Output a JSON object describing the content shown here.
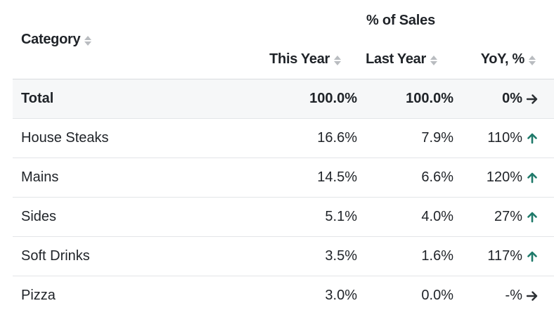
{
  "header": {
    "group_title": "% of Sales",
    "columns": {
      "category": "Category",
      "this_year": "This Year",
      "last_year": "Last Year",
      "yoy": "YoY, %"
    }
  },
  "colors": {
    "up_arrow": "#1f7a6a",
    "flat_arrow": "#2b2f33",
    "divider": "#e3e5e8"
  },
  "rows": [
    {
      "category": "Total",
      "this_year": "100.0%",
      "last_year": "100.0%",
      "yoy": "0%",
      "trend": "right-arrow-icon"
    },
    {
      "category": "House Steaks",
      "this_year": "16.6%",
      "last_year": "7.9%",
      "yoy": "110%",
      "trend": "up-arrow-icon"
    },
    {
      "category": "Mains",
      "this_year": "14.5%",
      "last_year": "6.6%",
      "yoy": "120%",
      "trend": "up-arrow-icon"
    },
    {
      "category": "Sides",
      "this_year": "5.1%",
      "last_year": "4.0%",
      "yoy": "27%",
      "trend": "up-arrow-icon"
    },
    {
      "category": "Soft Drinks",
      "this_year": "3.5%",
      "last_year": "1.6%",
      "yoy": "117%",
      "trend": "up-arrow-icon"
    },
    {
      "category": "Pizza",
      "this_year": "3.0%",
      "last_year": "0.0%",
      "yoy": "-%",
      "trend": "right-arrow-icon"
    }
  ]
}
